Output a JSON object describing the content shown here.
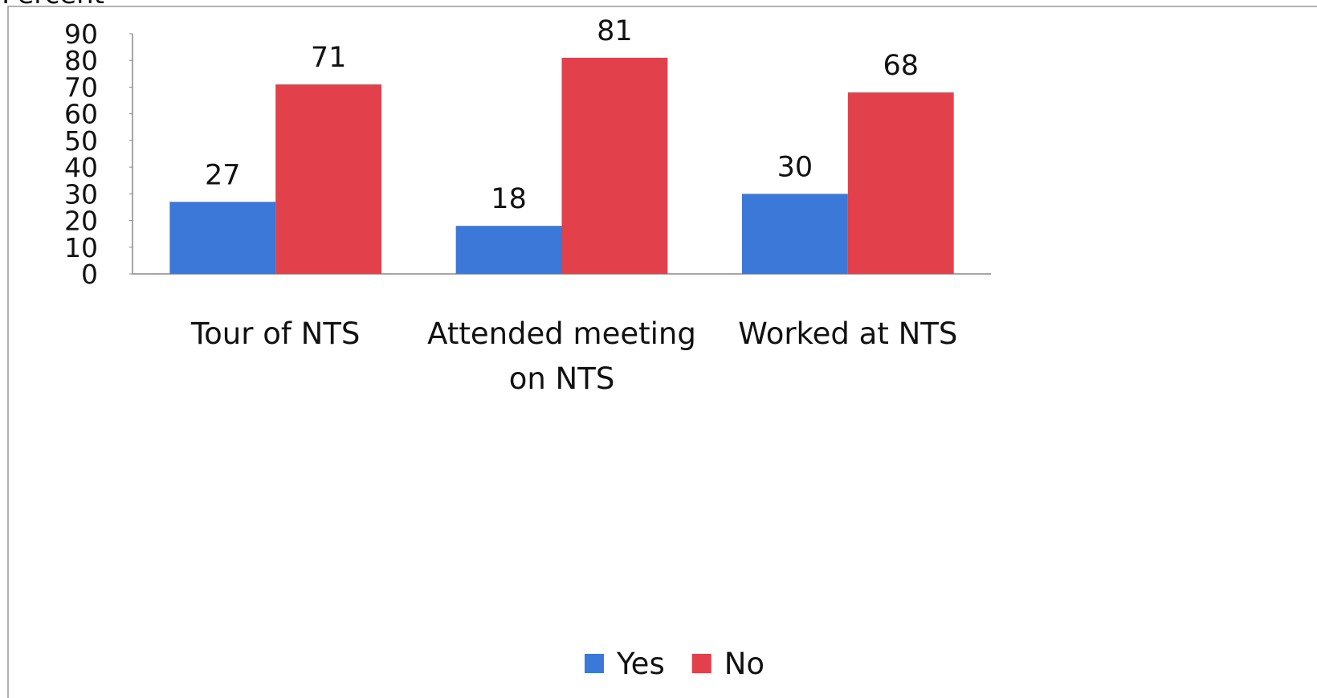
{
  "chart_data": {
    "type": "bar",
    "ylabel": "Percent",
    "categories": [
      "Tour of NTS",
      "Attended meeting on NTS",
      "Worked at NTS"
    ],
    "series": [
      {
        "name": "Yes",
        "color": "#3b78d8",
        "values": [
          27,
          18,
          30
        ]
      },
      {
        "name": "No",
        "color": "#e2404b",
        "values": [
          71,
          81,
          68
        ]
      }
    ],
    "ylim": [
      0,
      90
    ],
    "yticks": [
      0,
      10,
      20,
      30,
      40,
      50,
      60,
      70,
      80,
      90
    ],
    "grid": false,
    "legend": "bottom"
  }
}
